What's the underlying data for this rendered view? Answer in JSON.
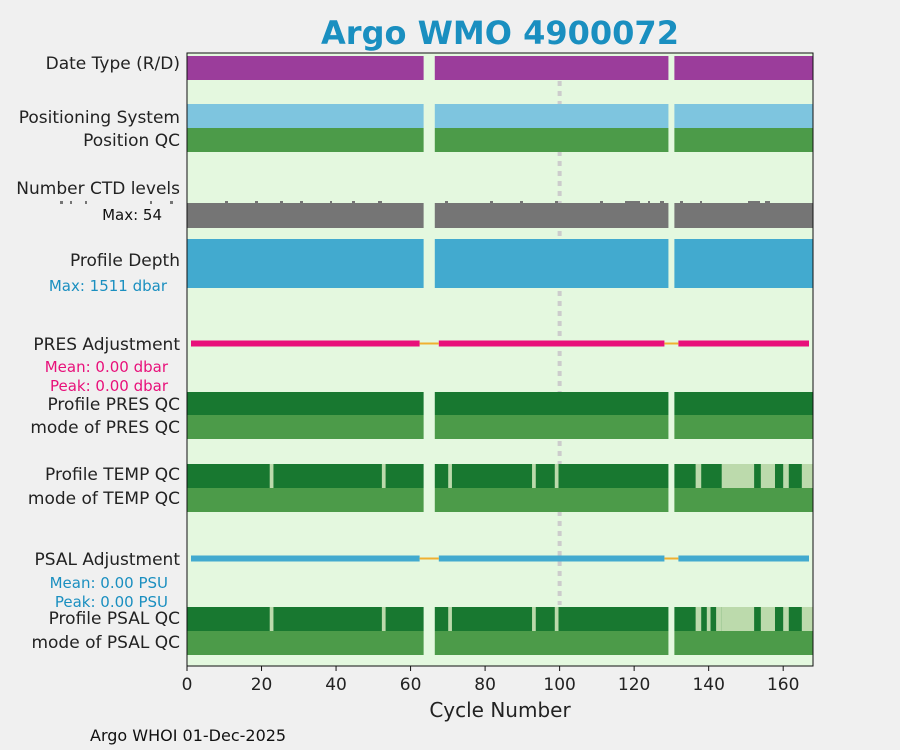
{
  "chart_data": {
    "type": "timeline",
    "title": "Argo WMO 4900072",
    "xlabel": "Cycle Number",
    "xlim": [
      0,
      168
    ],
    "xticks": [
      0,
      20,
      40,
      60,
      80,
      100,
      120,
      140,
      160
    ],
    "x_tick_labels": [
      "0",
      "20",
      "40",
      "60",
      "80",
      "100",
      "120",
      "140",
      "160"
    ],
    "footer": "Argo WHOI 01-Dec-2025",
    "marker_cycle": 100,
    "gaps": [
      [
        63.5,
        66.5
      ],
      [
        129.2,
        130.8
      ]
    ],
    "colors": {
      "background": "#e4f8df",
      "date_type": "#9b3d9b",
      "positioning": "#7ec5df",
      "qc_good": "#4c9b49",
      "qc_dark": "#187830",
      "qc_light": "#bcdaac",
      "ctd": "#757575",
      "depth": "#42aacf",
      "pres_adj": "#e8107a",
      "psal_adj": "#42aacf",
      "gap_line": "#f0b030",
      "marker": "#cccccc"
    },
    "rows": [
      {
        "key": "date_type",
        "label": "Date Type (R/D)"
      },
      {
        "key": "positioning",
        "label": "Positioning System"
      },
      {
        "key": "position_qc",
        "label": "Position QC"
      },
      {
        "key": "ctd_levels",
        "label": "Number CTD levels",
        "max_note": "Max: 54",
        "max_value": 54
      },
      {
        "key": "profile_depth",
        "label": "Profile Depth",
        "max_note": "Max: 1511 dbar",
        "max_value": 1511
      },
      {
        "key": "pres_adjustment",
        "label": "PRES Adjustment",
        "mean_note": "Mean: 0.00 dbar",
        "peak_note": "Peak: 0.00 dbar"
      },
      {
        "key": "profile_pres_qc",
        "label": "Profile PRES QC"
      },
      {
        "key": "mode_pres_qc",
        "label": "mode of PRES QC"
      },
      {
        "key": "profile_temp_qc",
        "label": "Profile TEMP QC",
        "light_ranges": [
          [
            22.2,
            23.2
          ],
          [
            52.3,
            53.3
          ],
          [
            70.1,
            71.1
          ],
          [
            92.6,
            93.6
          ],
          [
            98.7,
            99.7
          ],
          [
            136.5,
            138
          ],
          [
            143.5,
            152.2
          ],
          [
            154,
            157.8
          ],
          [
            160,
            161.5
          ],
          [
            165,
            168
          ]
        ]
      },
      {
        "key": "mode_temp_qc",
        "label": "mode of TEMP QC"
      },
      {
        "key": "psal_adjustment",
        "label": "PSAL Adjustment",
        "mean_note": "Mean: 0.00 PSU",
        "peak_note": "Peak: 0.00 PSU"
      },
      {
        "key": "profile_psal_qc",
        "label": "Profile PSAL QC",
        "light_ranges": [
          [
            22.2,
            23.2
          ],
          [
            52.3,
            53.3
          ],
          [
            70.1,
            71.1
          ],
          [
            92.6,
            93.6
          ],
          [
            98.7,
            99.7
          ],
          [
            136.5,
            138
          ],
          [
            139.5,
            140.5
          ],
          [
            142,
            143.5
          ],
          [
            143.5,
            152.2
          ],
          [
            154,
            157.8
          ],
          [
            160,
            161.5
          ],
          [
            165,
            168
          ]
        ]
      },
      {
        "key": "mode_psal_qc",
        "label": "mode of PSAL QC"
      }
    ]
  }
}
